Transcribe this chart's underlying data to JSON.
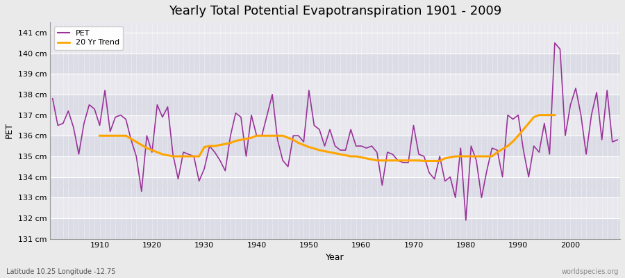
{
  "title": "Yearly Total Potential Evapotranspiration 1901 - 2009",
  "xlabel": "Year",
  "ylabel": "PET",
  "subtitle": "Latitude 10.25 Longitude -12.75",
  "watermark": "worldspecies.org",
  "pet_color": "#993399",
  "trend_color": "#FFA500",
  "fig_bg_color": "#EAEAEA",
  "plot_bg_color": "#E8E8EE",
  "band_color_dark": "#DCDCE6",
  "band_color_light": "#E8E8EE",
  "ylim": [
    131,
    141.5
  ],
  "ytick_labels": [
    "131 cm",
    "132 cm",
    "133 cm",
    "134 cm",
    "135 cm",
    "136 cm",
    "137 cm",
    "138 cm",
    "139 cm",
    "140 cm",
    "141 cm"
  ],
  "ytick_values": [
    131,
    132,
    133,
    134,
    135,
    136,
    137,
    138,
    139,
    140,
    141
  ],
  "years": [
    1901,
    1902,
    1903,
    1904,
    1905,
    1906,
    1907,
    1908,
    1909,
    1910,
    1911,
    1912,
    1913,
    1914,
    1915,
    1916,
    1917,
    1918,
    1919,
    1920,
    1921,
    1922,
    1923,
    1924,
    1925,
    1926,
    1927,
    1928,
    1929,
    1930,
    1931,
    1932,
    1933,
    1934,
    1935,
    1936,
    1937,
    1938,
    1939,
    1940,
    1941,
    1942,
    1943,
    1944,
    1945,
    1946,
    1947,
    1948,
    1949,
    1950,
    1951,
    1952,
    1953,
    1954,
    1955,
    1956,
    1957,
    1958,
    1959,
    1960,
    1961,
    1962,
    1963,
    1964,
    1965,
    1966,
    1967,
    1968,
    1969,
    1970,
    1971,
    1972,
    1973,
    1974,
    1975,
    1976,
    1977,
    1978,
    1979,
    1980,
    1981,
    1982,
    1983,
    1984,
    1985,
    1986,
    1987,
    1988,
    1989,
    1990,
    1991,
    1992,
    1993,
    1994,
    1995,
    1996,
    1997,
    1998,
    1999,
    2000,
    2001,
    2002,
    2003,
    2004,
    2005,
    2006,
    2007,
    2008,
    2009
  ],
  "pet_values": [
    137.8,
    136.5,
    136.6,
    137.2,
    136.4,
    135.1,
    136.6,
    137.5,
    137.3,
    136.5,
    138.2,
    136.2,
    136.9,
    137.0,
    136.8,
    135.8,
    135.0,
    133.3,
    136.0,
    135.2,
    137.5,
    136.9,
    137.4,
    135.1,
    133.9,
    135.2,
    135.1,
    135.0,
    133.8,
    134.4,
    135.5,
    135.2,
    134.8,
    134.3,
    136.0,
    137.1,
    136.9,
    135.0,
    137.0,
    136.0,
    136.0,
    137.0,
    138.0,
    135.8,
    134.8,
    134.5,
    136.0,
    136.0,
    135.7,
    138.2,
    136.5,
    136.3,
    135.5,
    136.3,
    135.5,
    135.3,
    135.3,
    136.3,
    135.5,
    135.5,
    135.4,
    135.5,
    135.2,
    133.6,
    135.2,
    135.1,
    134.8,
    134.7,
    134.7,
    136.5,
    135.1,
    135.0,
    134.2,
    133.9,
    135.0,
    133.8,
    134.0,
    133.0,
    135.4,
    131.9,
    135.5,
    134.8,
    133.0,
    134.3,
    135.4,
    135.3,
    134.0,
    137.0,
    136.8,
    137.0,
    135.3,
    134.0,
    135.5,
    135.2,
    136.6,
    135.1,
    140.5,
    140.2,
    136.0,
    137.5,
    138.3,
    137.0,
    135.1,
    137.0,
    138.1,
    135.8,
    138.2,
    135.7,
    135.8
  ],
  "trend_values": [
    null,
    null,
    null,
    null,
    null,
    null,
    null,
    null,
    null,
    136.0,
    136.0,
    136.0,
    136.0,
    136.0,
    136.0,
    135.85,
    135.7,
    135.55,
    135.4,
    135.3,
    135.2,
    135.1,
    135.05,
    135.0,
    135.0,
    135.0,
    135.0,
    135.0,
    135.0,
    135.45,
    135.5,
    135.5,
    135.55,
    135.6,
    135.65,
    135.75,
    135.8,
    135.85,
    135.9,
    136.0,
    136.0,
    136.0,
    136.0,
    136.0,
    136.0,
    135.9,
    135.8,
    135.65,
    135.55,
    135.45,
    135.38,
    135.3,
    135.25,
    135.2,
    135.15,
    135.1,
    135.05,
    135.0,
    135.0,
    134.95,
    134.9,
    134.85,
    134.8,
    134.8,
    134.8,
    134.8,
    134.8,
    134.8,
    134.8,
    134.8,
    134.8,
    134.78,
    134.78,
    134.78,
    134.78,
    134.9,
    134.95,
    135.0,
    135.0,
    135.0,
    135.0,
    135.0,
    135.0,
    135.0,
    135.0,
    135.2,
    135.35,
    135.5,
    135.72,
    136.0,
    136.3,
    136.6,
    136.9,
    137.0,
    137.0,
    137.0,
    137.0,
    null,
    null,
    null,
    null,
    null,
    null,
    null,
    null,
    null
  ]
}
